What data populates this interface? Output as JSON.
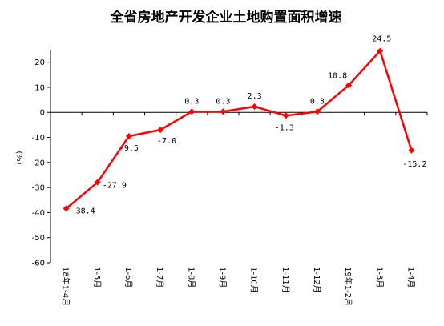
{
  "chart_data": {
    "type": "line",
    "title": "全省房地产开发企业土地购置面积增速",
    "ylabel": "(%)",
    "xlabel": "",
    "ylim": [
      -60,
      25
    ],
    "yticks": [
      -60,
      -50,
      -40,
      -30,
      -20,
      -10,
      0,
      10,
      20
    ],
    "categories": [
      "18年1-4月",
      "1-5月",
      "1-6月",
      "1-7月",
      "1-8月",
      "1-9月",
      "1-10月",
      "1-11月",
      "1-12月",
      "19年1-2月",
      "1-3月",
      "1-4月"
    ],
    "series": [
      {
        "values": [
          -38.4,
          -27.9,
          -9.5,
          -7.0,
          0.3,
          0.3,
          2.3,
          -1.3,
          0.3,
          10.8,
          24.5,
          -15.2
        ],
        "labels": [
          "-38.4",
          "-27.9",
          "-9.5",
          "-7.0",
          "0.3",
          "0.3",
          "2.3",
          "-1.3",
          "0.3",
          "10.8",
          "24.5",
          "-15.2"
        ],
        "color": "#ff0000"
      }
    ],
    "grid": false,
    "legend": "none"
  }
}
